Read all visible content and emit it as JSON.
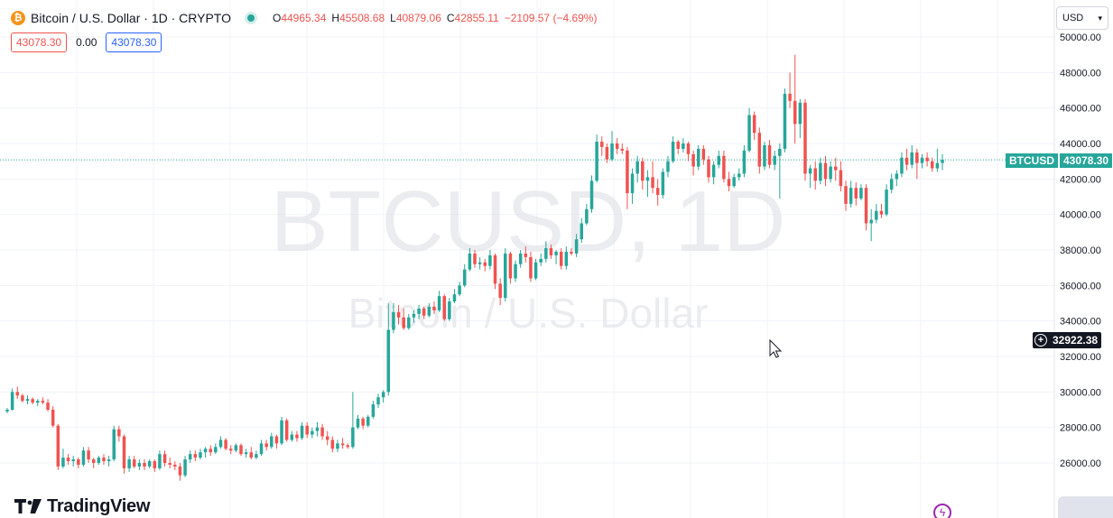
{
  "header": {
    "logo_glyph": "₿",
    "symbol_title": "Bitcoin / U.S. Dollar · 1D · CRYPTO",
    "ohlc": {
      "o_label": "O",
      "o_value": "44965.34",
      "h_label": "H",
      "h_value": "45508.68",
      "l_label": "L",
      "l_value": "40879.06",
      "c_label": "C",
      "c_value": "42855.11",
      "change": "−2109.57 (−4.69%)"
    }
  },
  "indicator_row": {
    "left_value": "43078.30",
    "middle_value": "0.00",
    "right_value": "43078.30"
  },
  "currency_select": {
    "value": "USD",
    "icon": "chevron-down-icon"
  },
  "brand": {
    "name": "TradingView",
    "icon": "tradingview-logo-icon"
  },
  "watermark": {
    "line1": "BTCUSD, 1D",
    "line2": "Bitcoin / U.S. Dollar"
  },
  "last_price_badge": {
    "symbol": "BTCUSD",
    "value": "43078.30"
  },
  "crosshair_badge": {
    "value": "32922.38",
    "icon": "plus-circle-icon"
  },
  "colors": {
    "up": "#26a69a",
    "down": "#ef5350",
    "grid": "#f0f3fa",
    "text": "#131722",
    "accent": "#2962ff"
  },
  "chart_data": {
    "type": "candlestick",
    "y_axis": {
      "ticks": [
        "26000.00",
        "28000.00",
        "30000.00",
        "32000.00",
        "34000.00",
        "36000.00",
        "38000.00",
        "40000.00",
        "42000.00",
        "44000.00",
        "46000.00",
        "48000.00",
        "50000.00"
      ],
      "ylim": [
        24000,
        50500
      ],
      "position": "right"
    },
    "last_price": 43078.3,
    "crosshair_price": 32922.38,
    "candles": [
      [
        28900,
        29100,
        28800,
        29000
      ],
      [
        29000,
        30200,
        28950,
        30000
      ],
      [
        30000,
        30300,
        29600,
        29800
      ],
      [
        29800,
        29900,
        29400,
        29500
      ],
      [
        29500,
        29800,
        29300,
        29600
      ],
      [
        29600,
        29700,
        29300,
        29400
      ],
      [
        29400,
        29600,
        29200,
        29500
      ],
      [
        29500,
        29700,
        29300,
        29400
      ],
      [
        29400,
        29600,
        28900,
        29000
      ],
      [
        29000,
        29200,
        28000,
        28100
      ],
      [
        28100,
        28200,
        25600,
        25800
      ],
      [
        25800,
        26800,
        25700,
        26300
      ],
      [
        26300,
        26500,
        25900,
        26100
      ],
      [
        26100,
        26400,
        25800,
        26200
      ],
      [
        26200,
        26300,
        25700,
        25900
      ],
      [
        25900,
        26900,
        25800,
        26700
      ],
      [
        26700,
        26900,
        26000,
        26200
      ],
      [
        26200,
        26300,
        25700,
        26000
      ],
      [
        26000,
        26400,
        25900,
        26300
      ],
      [
        26300,
        26500,
        25900,
        26100
      ],
      [
        26100,
        26400,
        25800,
        26200
      ],
      [
        26200,
        28100,
        26100,
        27900
      ],
      [
        27900,
        28100,
        27200,
        27500
      ],
      [
        27500,
        27600,
        25400,
        25700
      ],
      [
        25700,
        26400,
        25500,
        26200
      ],
      [
        26200,
        26400,
        25700,
        25800
      ],
      [
        25800,
        26200,
        25600,
        26000
      ],
      [
        26000,
        26200,
        25600,
        25800
      ],
      [
        25800,
        26200,
        25700,
        26100
      ],
      [
        26100,
        26200,
        25500,
        25700
      ],
      [
        25700,
        26700,
        25600,
        26500
      ],
      [
        26500,
        26700,
        25800,
        26000
      ],
      [
        26000,
        26300,
        25700,
        25900
      ],
      [
        25900,
        26100,
        25600,
        25800
      ],
      [
        25800,
        26000,
        25000,
        25300
      ],
      [
        25300,
        26400,
        25200,
        26200
      ],
      [
        26200,
        26700,
        26000,
        26500
      ],
      [
        26500,
        26700,
        26100,
        26300
      ],
      [
        26300,
        26800,
        26200,
        26600
      ],
      [
        26600,
        26900,
        26300,
        26800
      ],
      [
        26800,
        27000,
        26400,
        26600
      ],
      [
        26600,
        27100,
        26500,
        26900
      ],
      [
        26900,
        27500,
        26800,
        27300
      ],
      [
        27300,
        27400,
        26700,
        26800
      ],
      [
        26800,
        27000,
        26500,
        26700
      ],
      [
        26700,
        27100,
        26600,
        27000
      ],
      [
        27000,
        27100,
        26400,
        26500
      ],
      [
        26500,
        26800,
        26300,
        26600
      ],
      [
        26600,
        26900,
        26200,
        26300
      ],
      [
        26300,
        26700,
        26200,
        26500
      ],
      [
        26500,
        27300,
        26400,
        27100
      ],
      [
        27100,
        27300,
        26700,
        26900
      ],
      [
        26900,
        27700,
        26800,
        27500
      ],
      [
        27500,
        27600,
        26800,
        27100
      ],
      [
        27100,
        28600,
        27000,
        28400
      ],
      [
        28400,
        28500,
        27200,
        27300
      ],
      [
        27300,
        27800,
        27200,
        27600
      ],
      [
        27600,
        27800,
        27200,
        27400
      ],
      [
        27400,
        28300,
        27300,
        28100
      ],
      [
        28100,
        28300,
        27400,
        27600
      ],
      [
        27600,
        28000,
        27400,
        27800
      ],
      [
        27800,
        28300,
        27500,
        28000
      ],
      [
        28000,
        28200,
        27300,
        27500
      ],
      [
        27500,
        27800,
        27000,
        27300
      ],
      [
        27300,
        27500,
        26600,
        26800
      ],
      [
        26800,
        27300,
        26600,
        27100
      ],
      [
        27100,
        27400,
        26800,
        27000
      ],
      [
        27000,
        27100,
        26800,
        26900
      ],
      [
        26900,
        30000,
        26800,
        28000
      ],
      [
        28000,
        28700,
        27900,
        28500
      ],
      [
        28500,
        28600,
        27900,
        28100
      ],
      [
        28100,
        28700,
        28000,
        28600
      ],
      [
        28600,
        29500,
        28500,
        29300
      ],
      [
        29300,
        29900,
        29100,
        29700
      ],
      [
        29700,
        30100,
        29400,
        30000
      ],
      [
        30000,
        35000,
        29800,
        33500
      ],
      [
        33500,
        35000,
        33300,
        34500
      ],
      [
        34500,
        34900,
        33800,
        34200
      ],
      [
        34200,
        34700,
        33500,
        33600
      ],
      [
        33600,
        34400,
        33500,
        34200
      ],
      [
        34200,
        34600,
        33900,
        34400
      ],
      [
        34400,
        34900,
        34100,
        34700
      ],
      [
        34700,
        34800,
        34100,
        34300
      ],
      [
        34300,
        35000,
        34200,
        34800
      ],
      [
        34800,
        35100,
        34400,
        34600
      ],
      [
        34600,
        35700,
        34500,
        35400
      ],
      [
        35400,
        35500,
        34000,
        34100
      ],
      [
        34100,
        35300,
        34000,
        35100
      ],
      [
        35100,
        35800,
        35000,
        35500
      ],
      [
        35500,
        36200,
        35400,
        36000
      ],
      [
        36000,
        37200,
        35900,
        36900
      ],
      [
        36900,
        38100,
        36800,
        37800
      ],
      [
        37800,
        38000,
        37000,
        37200
      ],
      [
        37200,
        37600,
        36900,
        37300
      ],
      [
        37300,
        37500,
        36800,
        37100
      ],
      [
        37100,
        38000,
        36900,
        37700
      ],
      [
        37700,
        37800,
        35800,
        36100
      ],
      [
        36100,
        36400,
        34900,
        35300
      ],
      [
        35300,
        38100,
        35100,
        37800
      ],
      [
        37800,
        37900,
        36100,
        36400
      ],
      [
        36400,
        37400,
        36200,
        37200
      ],
      [
        37200,
        38000,
        37000,
        37800
      ],
      [
        37800,
        38200,
        37300,
        37600
      ],
      [
        37600,
        37900,
        36200,
        36400
      ],
      [
        36400,
        37500,
        36300,
        37300
      ],
      [
        37300,
        37800,
        37100,
        37500
      ],
      [
        37500,
        38500,
        37300,
        38100
      ],
      [
        38100,
        38300,
        37500,
        37700
      ],
      [
        37700,
        38000,
        37200,
        37900
      ],
      [
        37900,
        38100,
        36900,
        37100
      ],
      [
        37100,
        38200,
        36900,
        37900
      ],
      [
        37900,
        38100,
        37700,
        37800
      ],
      [
        37800,
        38900,
        37600,
        38600
      ],
      [
        38600,
        39800,
        38400,
        39500
      ],
      [
        39500,
        40600,
        39400,
        40300
      ],
      [
        40300,
        42200,
        40100,
        41900
      ],
      [
        41900,
        44500,
        41800,
        44100
      ],
      [
        44100,
        44400,
        43300,
        43800
      ],
      [
        43800,
        44000,
        42900,
        43100
      ],
      [
        43100,
        44700,
        43000,
        44000
      ],
      [
        44000,
        44300,
        43400,
        43700
      ],
      [
        43700,
        44000,
        43400,
        43600
      ],
      [
        43600,
        43800,
        40300,
        41200
      ],
      [
        41200,
        42600,
        40600,
        42300
      ],
      [
        42300,
        43300,
        41800,
        43000
      ],
      [
        43000,
        43200,
        41400,
        41900
      ],
      [
        41900,
        42500,
        41000,
        42100
      ],
      [
        42100,
        43000,
        41200,
        41500
      ],
      [
        41500,
        42000,
        40500,
        41100
      ],
      [
        41100,
        42600,
        40900,
        42400
      ],
      [
        42400,
        43300,
        42100,
        43000
      ],
      [
        43000,
        44400,
        42900,
        44100
      ],
      [
        44100,
        44200,
        43400,
        43700
      ],
      [
        43700,
        44300,
        43500,
        44000
      ],
      [
        44000,
        44100,
        43000,
        43400
      ],
      [
        43400,
        43600,
        42200,
        42700
      ],
      [
        42700,
        43900,
        42500,
        43700
      ],
      [
        43700,
        43900,
        42800,
        43100
      ],
      [
        43100,
        43300,
        41800,
        42100
      ],
      [
        42100,
        43000,
        41700,
        42800
      ],
      [
        42800,
        43600,
        42600,
        43300
      ],
      [
        43300,
        43600,
        41800,
        42000
      ],
      [
        42000,
        42400,
        41300,
        41600
      ],
      [
        41600,
        42300,
        41500,
        42100
      ],
      [
        42100,
        42600,
        41900,
        42300
      ],
      [
        42300,
        43900,
        42100,
        43600
      ],
      [
        43600,
        46000,
        43500,
        45600
      ],
      [
        45600,
        45800,
        44200,
        44600
      ],
      [
        44600,
        44900,
        42300,
        42700
      ],
      [
        42700,
        44100,
        42500,
        43900
      ],
      [
        43900,
        44200,
        42600,
        42800
      ],
      [
        42800,
        43600,
        42500,
        43300
      ],
      [
        43300,
        44000,
        40900,
        43700
      ],
      [
        43700,
        47100,
        43500,
        46800
      ],
      [
        46800,
        48000,
        46000,
        46400
      ],
      [
        46400,
        49000,
        44000,
        45100
      ],
      [
        45100,
        46500,
        44300,
        46300
      ],
      [
        46300,
        46500,
        41900,
        42300
      ],
      [
        42300,
        42800,
        41500,
        42600
      ],
      [
        42600,
        43000,
        41400,
        41900
      ],
      [
        41900,
        43200,
        41700,
        42900
      ],
      [
        42900,
        43300,
        41600,
        42000
      ],
      [
        42000,
        43000,
        41800,
        42700
      ],
      [
        42700,
        43200,
        41900,
        42500
      ],
      [
        42500,
        43000,
        41300,
        41600
      ],
      [
        41600,
        41900,
        40200,
        40600
      ],
      [
        40600,
        41900,
        40400,
        41500
      ],
      [
        41500,
        41800,
        40500,
        40900
      ],
      [
        40900,
        41700,
        40800,
        41500
      ],
      [
        41500,
        41700,
        39100,
        39500
      ],
      [
        39500,
        40300,
        38500,
        39700
      ],
      [
        39700,
        40600,
        39500,
        40200
      ],
      [
        40200,
        40600,
        39800,
        40000
      ],
      [
        40000,
        41700,
        39900,
        41400
      ],
      [
        41400,
        42300,
        41200,
        42000
      ],
      [
        42000,
        42500,
        41600,
        42300
      ],
      [
        42300,
        43500,
        42100,
        43200
      ],
      [
        43200,
        43700,
        42500,
        42800
      ],
      [
        42800,
        43900,
        42600,
        43500
      ],
      [
        43500,
        43700,
        42000,
        42900
      ],
      [
        42900,
        43400,
        42600,
        43200
      ],
      [
        43200,
        43500,
        42700,
        43000
      ],
      [
        43000,
        43200,
        42400,
        42600
      ],
      [
        42600,
        43700,
        42400,
        42900
      ],
      [
        42900,
        43400,
        42500,
        43078.3
      ]
    ]
  }
}
